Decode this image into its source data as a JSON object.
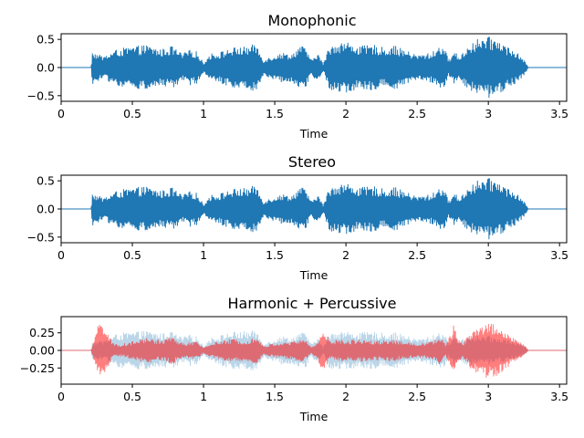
{
  "chart_data": [
    {
      "type": "line",
      "title": "Monophonic",
      "xlabel": "Time",
      "ylabel": "",
      "xlim": [
        0,
        3.55
      ],
      "ylim": [
        -0.6,
        0.6
      ],
      "xticks": [
        0,
        0.5,
        1,
        1.5,
        2,
        2.5,
        3,
        3.5
      ],
      "xtick_labels": [
        "0",
        "0.5",
        "1",
        "1.5",
        "2",
        "2.5",
        "3",
        "3.5"
      ],
      "yticks": [
        -0.5,
        0.0,
        0.5
      ],
      "ytick_labels": [
        "−0.5",
        "0.0",
        "0.5"
      ],
      "series": [
        {
          "color": "#1f77b4",
          "alpha": 1.0,
          "envelope_time": [
            0,
            0.21,
            0.22,
            0.27,
            0.3,
            0.4,
            0.5,
            0.6,
            0.7,
            0.78,
            0.85,
            0.9,
            0.95,
            1.0,
            1.05,
            1.1,
            1.2,
            1.3,
            1.37,
            1.42,
            1.5,
            1.55,
            1.62,
            1.68,
            1.72,
            1.76,
            1.8,
            1.84,
            1.88,
            1.92,
            2.0,
            2.1,
            2.2,
            2.28,
            2.33,
            2.4,
            2.5,
            2.6,
            2.68,
            2.72,
            2.76,
            2.8,
            2.86,
            2.92,
            3.0,
            3.06,
            3.12,
            3.18,
            3.22,
            3.26,
            3.28,
            3.55
          ],
          "envelope_amplitude": [
            0,
            0,
            0.3,
            0.22,
            0.2,
            0.33,
            0.37,
            0.4,
            0.32,
            0.38,
            0.24,
            0.31,
            0.29,
            0.08,
            0.25,
            0.26,
            0.35,
            0.37,
            0.42,
            0.14,
            0.22,
            0.26,
            0.24,
            0.4,
            0.34,
            0.12,
            0.28,
            0.06,
            0.36,
            0.44,
            0.46,
            0.38,
            0.4,
            0.34,
            0.4,
            0.32,
            0.22,
            0.26,
            0.42,
            0.15,
            0.28,
            0.2,
            0.4,
            0.5,
            0.54,
            0.52,
            0.4,
            0.3,
            0.22,
            0.1,
            0,
            0
          ]
        }
      ]
    },
    {
      "type": "line",
      "title": "Stereo",
      "xlabel": "Time",
      "ylabel": "",
      "xlim": [
        0,
        3.55
      ],
      "ylim": [
        -0.6,
        0.6
      ],
      "xticks": [
        0,
        0.5,
        1,
        1.5,
        2,
        2.5,
        3,
        3.5
      ],
      "xtick_labels": [
        "0",
        "0.5",
        "1",
        "1.5",
        "2",
        "2.5",
        "3",
        "3.5"
      ],
      "yticks": [
        -0.5,
        0.0,
        0.5
      ],
      "ytick_labels": [
        "−0.5",
        "0.0",
        "0.5"
      ],
      "series": [
        {
          "color": "#1f77b4",
          "alpha": 1.0,
          "envelope_time": [
            0,
            0.21,
            0.22,
            0.27,
            0.3,
            0.4,
            0.5,
            0.6,
            0.7,
            0.78,
            0.85,
            0.9,
            0.95,
            1.0,
            1.05,
            1.1,
            1.2,
            1.3,
            1.37,
            1.42,
            1.5,
            1.55,
            1.62,
            1.68,
            1.72,
            1.76,
            1.8,
            1.84,
            1.88,
            1.92,
            2.0,
            2.1,
            2.2,
            2.28,
            2.33,
            2.4,
            2.5,
            2.6,
            2.68,
            2.72,
            2.76,
            2.8,
            2.86,
            2.92,
            3.0,
            3.06,
            3.12,
            3.18,
            3.22,
            3.26,
            3.28,
            3.55
          ],
          "envelope_amplitude": [
            0,
            0,
            0.3,
            0.22,
            0.2,
            0.33,
            0.37,
            0.4,
            0.32,
            0.38,
            0.24,
            0.31,
            0.29,
            0.08,
            0.25,
            0.26,
            0.35,
            0.37,
            0.42,
            0.14,
            0.22,
            0.26,
            0.24,
            0.4,
            0.34,
            0.12,
            0.28,
            0.06,
            0.36,
            0.44,
            0.46,
            0.38,
            0.4,
            0.34,
            0.4,
            0.32,
            0.22,
            0.26,
            0.42,
            0.15,
            0.28,
            0.2,
            0.4,
            0.5,
            0.54,
            0.52,
            0.4,
            0.3,
            0.22,
            0.1,
            0,
            0
          ]
        }
      ]
    },
    {
      "type": "line",
      "title": "Harmonic + Percussive",
      "xlabel": "Time",
      "ylabel": "",
      "xlim": [
        0,
        3.55
      ],
      "ylim": [
        -0.48,
        0.48
      ],
      "xticks": [
        0,
        0.5,
        1,
        1.5,
        2,
        2.5,
        3,
        3.5
      ],
      "xtick_labels": [
        "0",
        "0.5",
        "1",
        "1.5",
        "2",
        "2.5",
        "3",
        "3.5"
      ],
      "yticks": [
        -0.25,
        0.0,
        0.25
      ],
      "ytick_labels": [
        "−0.25",
        "0.00",
        "0.25"
      ],
      "series": [
        {
          "color": "#1f77b4",
          "alpha": 0.3,
          "envelope_time": [
            0,
            0.21,
            0.22,
            0.3,
            0.4,
            0.5,
            0.6,
            0.7,
            0.78,
            0.85,
            0.9,
            0.95,
            1.0,
            1.05,
            1.1,
            1.2,
            1.3,
            1.37,
            1.42,
            1.5,
            1.55,
            1.62,
            1.68,
            1.72,
            1.76,
            1.8,
            1.84,
            1.88,
            1.92,
            2.0,
            2.1,
            2.2,
            2.28,
            2.33,
            2.4,
            2.5,
            2.6,
            2.68,
            2.72,
            2.76,
            2.8,
            2.86,
            2.92,
            3.0,
            3.06,
            3.12,
            3.18,
            3.22,
            3.26,
            3.28,
            3.55
          ],
          "envelope_amplitude": [
            0,
            0,
            0.12,
            0.14,
            0.24,
            0.26,
            0.28,
            0.24,
            0.26,
            0.18,
            0.22,
            0.2,
            0.06,
            0.18,
            0.2,
            0.26,
            0.27,
            0.28,
            0.1,
            0.16,
            0.2,
            0.18,
            0.26,
            0.24,
            0.08,
            0.2,
            0.04,
            0.24,
            0.28,
            0.27,
            0.25,
            0.26,
            0.24,
            0.26,
            0.22,
            0.16,
            0.2,
            0.28,
            0.1,
            0.2,
            0.14,
            0.22,
            0.2,
            0.2,
            0.18,
            0.16,
            0.12,
            0.1,
            0.05,
            0,
            0
          ]
        },
        {
          "color": "#ff0000",
          "alpha": 0.5,
          "envelope_time": [
            0,
            0.21,
            0.23,
            0.26,
            0.29,
            0.32,
            0.36,
            0.4,
            0.5,
            0.6,
            0.7,
            0.78,
            0.85,
            0.95,
            1.0,
            1.05,
            1.1,
            1.2,
            1.3,
            1.37,
            1.42,
            1.5,
            1.62,
            1.68,
            1.72,
            1.76,
            1.8,
            1.84,
            1.87,
            1.9,
            1.94,
            2.0,
            2.1,
            2.2,
            2.28,
            2.33,
            2.4,
            2.5,
            2.6,
            2.66,
            2.7,
            2.74,
            2.76,
            2.78,
            2.82,
            2.88,
            2.95,
            3.0,
            3.05,
            3.1,
            3.16,
            3.22,
            3.26,
            3.28,
            3.55
          ],
          "envelope_amplitude": [
            0,
            0,
            0.15,
            0.38,
            0.42,
            0.3,
            0.1,
            0.08,
            0.12,
            0.18,
            0.14,
            0.2,
            0.1,
            0.12,
            0.04,
            0.1,
            0.12,
            0.16,
            0.14,
            0.2,
            0.06,
            0.1,
            0.12,
            0.16,
            0.14,
            0.04,
            0.12,
            0.32,
            0.2,
            0.1,
            0.16,
            0.14,
            0.16,
            0.14,
            0.14,
            0.16,
            0.12,
            0.1,
            0.12,
            0.2,
            0.08,
            0.24,
            0.38,
            0.2,
            0.1,
            0.28,
            0.36,
            0.4,
            0.37,
            0.3,
            0.2,
            0.12,
            0.06,
            0,
            0
          ]
        }
      ]
    }
  ]
}
